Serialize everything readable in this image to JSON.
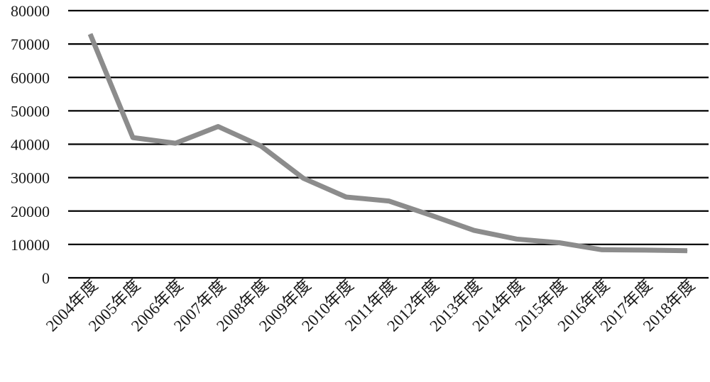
{
  "chart_data": {
    "type": "line",
    "categories": [
      "2004年度",
      "2005年度",
      "2006年度",
      "2007年度",
      "2008年度",
      "2009年度",
      "2010年度",
      "2011年度",
      "2012年度",
      "2013年度",
      "2014年度",
      "2015年度",
      "2016年度",
      "2017年度",
      "2018年度"
    ],
    "series": [
      {
        "values": [
          73000,
          42000,
          40300,
          45300,
          39500,
          29800,
          24200,
          23000,
          18700,
          14200,
          11600,
          10500,
          8400,
          8300,
          8100
        ]
      }
    ],
    "yticks": [
      "0",
      "10000",
      "20000",
      "30000",
      "40000",
      "50000",
      "60000",
      "70000",
      "80000"
    ],
    "ylim": [
      0,
      80000
    ],
    "grid": true,
    "legend": "none",
    "line_color": "#8c8c8c",
    "grid_color": "#000000"
  }
}
